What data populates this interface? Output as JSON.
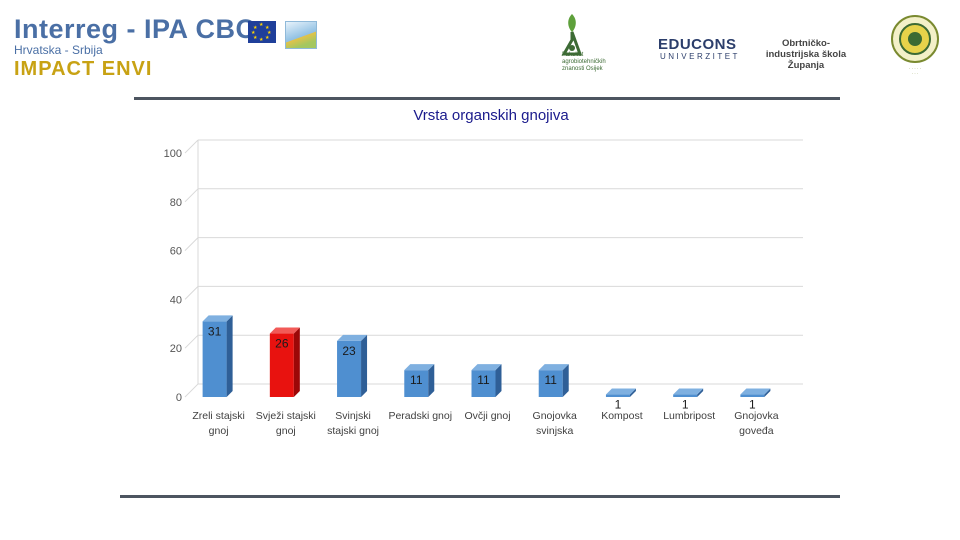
{
  "header": {
    "program_title": "Interreg - IPA CBC",
    "program_subtitle": "Hrvatska - Srbija",
    "project_name": "IMPACT ENVI",
    "partner_faculty": "Fakultet agrobiotehničkih znanosti Osijek",
    "partner_educons_main": "EDUCONS",
    "partner_educons_sub": "UNIVERZITET",
    "partner_school": "Obrtničko-industrijska škola Županja"
  },
  "colors": {
    "bar_blue": "#4f8fd0",
    "bar_blue_side": "#2f5f97",
    "bar_blue_top": "#7fb0e0",
    "bar_red": "#e8120f",
    "bar_red_side": "#9c0707",
    "bar_red_top": "#f25a57",
    "rule": "#4d5560",
    "title": "#1a1a8c",
    "brand_blue": "#4a6fa5",
    "brand_gold": "#c8a214"
  },
  "chart_data": {
    "type": "bar",
    "title": "Vrsta organskih gnojiva",
    "categories": [
      [
        "Zreli stajski",
        "gnoj"
      ],
      [
        "Svježi stajski",
        "gnoj"
      ],
      [
        "Svinjski",
        "stajski gnoj"
      ],
      [
        "Peradski gnoj"
      ],
      [
        "Ovčji gnoj"
      ],
      [
        "Gnojovka",
        "svinjska"
      ],
      [
        "Kompost"
      ],
      [
        "Lumbripost"
      ],
      [
        "Gnojovka",
        "goveđa"
      ]
    ],
    "values": [
      31,
      26,
      23,
      11,
      11,
      11,
      1,
      1,
      1
    ],
    "highlight_index": 1,
    "ylim": [
      0,
      100
    ],
    "yticks": [
      0,
      20,
      40,
      60,
      80,
      100
    ],
    "grid": true,
    "three_d": true,
    "legend": "none"
  }
}
